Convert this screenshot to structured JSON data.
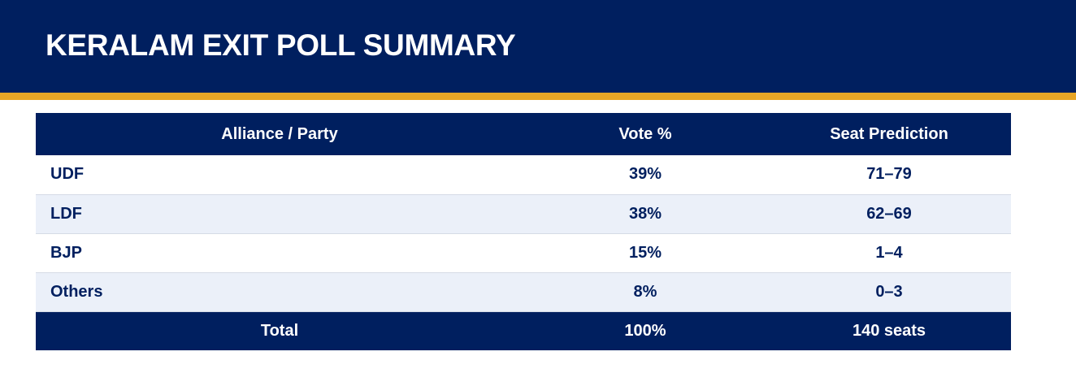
{
  "title": "KERALAM EXIT POLL SUMMARY",
  "colors": {
    "navy": "#001f5f",
    "gold": "#e8a526",
    "row_tint": "#ebf0f9"
  },
  "table": {
    "headers": [
      "Alliance / Party",
      "Vote %",
      "Seat Prediction"
    ],
    "rows": [
      {
        "party": "UDF",
        "vote": "39%",
        "seats": "71–79"
      },
      {
        "party": "LDF",
        "vote": "38%",
        "seats": "62–69"
      },
      {
        "party": "BJP",
        "vote": "15%",
        "seats": "1–4"
      },
      {
        "party": "Others",
        "vote": "8%",
        "seats": "0–3"
      }
    ],
    "total": {
      "label": "Total",
      "vote": "100%",
      "seats": "140 seats"
    }
  }
}
